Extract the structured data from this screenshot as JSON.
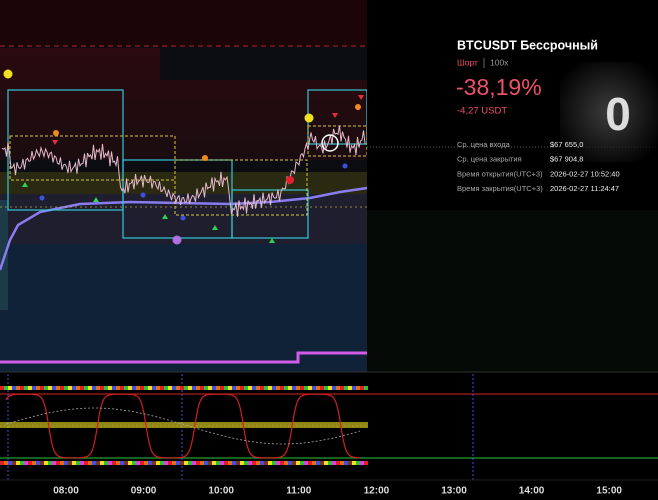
{
  "card": {
    "symbol": "BTCUSDT Бессрочный",
    "side": "Шорт",
    "leverage": "100x",
    "roe": "-38,19%",
    "pnl": "-4,27 USDT",
    "rows": [
      [
        "Ср. цена входа",
        "$67 655,0"
      ],
      [
        "Ср. цена закрытия",
        "$67 904,8"
      ],
      [
        "Время открытия(UTC+3)",
        "2026-02-27 10:52:40"
      ],
      [
        "Время закрытия(UTC+3)",
        "2026-02-27 11:24:47"
      ]
    ]
  },
  "time_axis": [
    "08:00",
    "09:00",
    "10:00",
    "11:00",
    "12:00",
    "13:00",
    "14:00",
    "15:00"
  ]
}
